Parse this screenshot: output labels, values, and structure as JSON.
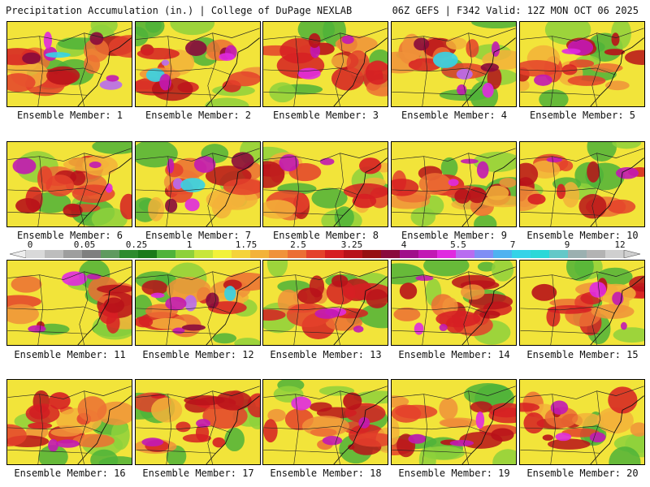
{
  "header": {
    "title_left": "Precipitation Accumulation (in.) | College of DuPage NEXLAB",
    "title_right": "06Z GEFS | F342 Valid: 12Z MON OCT 06 2025"
  },
  "members": [
    {
      "label": "Ensemble Member: 1",
      "seed": 11,
      "hot": "high"
    },
    {
      "label": "Ensemble Member: 2",
      "seed": 22,
      "hot": "high"
    },
    {
      "label": "Ensemble Member: 3",
      "seed": 33,
      "hot": "mid"
    },
    {
      "label": "Ensemble Member: 4",
      "seed": 44,
      "hot": "high"
    },
    {
      "label": "Ensemble Member: 5",
      "seed": 55,
      "hot": "mid"
    },
    {
      "label": "Ensemble Member: 6",
      "seed": 66,
      "hot": "mid"
    },
    {
      "label": "Ensemble Member: 7",
      "seed": 77,
      "hot": "high"
    },
    {
      "label": "Ensemble Member: 8",
      "seed": 88,
      "hot": "low"
    },
    {
      "label": "Ensemble Member: 9",
      "seed": 99,
      "hot": "mid"
    },
    {
      "label": "Ensemble Member: 10",
      "seed": 110,
      "hot": "low"
    },
    {
      "label": "Ensemble Member: 11",
      "seed": 121,
      "hot": "mid"
    },
    {
      "label": "Ensemble Member: 12",
      "seed": 132,
      "hot": "high"
    },
    {
      "label": "Ensemble Member: 13",
      "seed": 143,
      "hot": "mid"
    },
    {
      "label": "Ensemble Member: 14",
      "seed": 154,
      "hot": "mid"
    },
    {
      "label": "Ensemble Member: 15",
      "seed": 165,
      "hot": "mid"
    },
    {
      "label": "Ensemble Member: 16",
      "seed": 176,
      "hot": "low"
    },
    {
      "label": "Ensemble Member: 17",
      "seed": 187,
      "hot": "low"
    },
    {
      "label": "Ensemble Member: 18",
      "seed": 198,
      "hot": "mid"
    },
    {
      "label": "Ensemble Member: 19",
      "seed": 209,
      "hot": "mid"
    },
    {
      "label": "Ensemble Member: 20",
      "seed": 220,
      "hot": "mid"
    }
  ],
  "legend": {
    "ticks": [
      "0",
      "0.05",
      "0.25",
      "1",
      "1.75",
      "2.5",
      "3.25",
      "4",
      "5.5",
      "7",
      "9",
      "12"
    ],
    "colors": [
      "#d9d9d9",
      "#bdbdbd",
      "#9e9e9e",
      "#7f7f7f",
      "#5f9a5f",
      "#2e8b2e",
      "#1a7a1a",
      "#4fb33a",
      "#8ed13c",
      "#c8e63c",
      "#f2f23a",
      "#f5d33a",
      "#f3b23a",
      "#f0923a",
      "#ec6e34",
      "#e4412c",
      "#d61e23",
      "#b8121a",
      "#961012",
      "#8a0a3c",
      "#a0108a",
      "#c218b4",
      "#e02ae0",
      "#b86cf0",
      "#7f8ef5",
      "#4fb2f0",
      "#35d3e8",
      "#2bd8d8",
      "#63c8c8",
      "#9bb0b0",
      "#b3b3b3",
      "#cfcfcf"
    ]
  }
}
